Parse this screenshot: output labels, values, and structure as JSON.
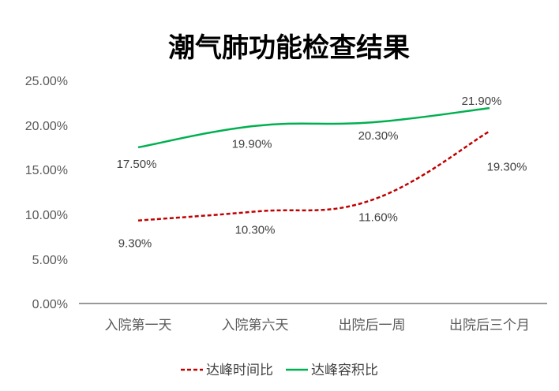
{
  "chart_data": {
    "type": "line",
    "title": "潮气肺功能检查结果",
    "categories": [
      "入院第一天",
      "入院第六天",
      "出院后一周",
      "出院后三个月"
    ],
    "y_ticks": [
      "0.00%",
      "5.00%",
      "10.00%",
      "15.00%",
      "20.00%",
      "25.00%"
    ],
    "ylim": [
      0,
      25
    ],
    "grid": false,
    "legend_position": "bottom",
    "series": [
      {
        "name": "达峰时间比",
        "values": [
          9.3,
          10.3,
          11.6,
          19.3
        ],
        "labels": [
          "9.30%",
          "10.30%",
          "11.60%",
          "19.30%"
        ],
        "color": "#C00000",
        "style": "dashed"
      },
      {
        "name": "达峰容积比",
        "values": [
          17.5,
          19.9,
          20.3,
          21.9
        ],
        "labels": [
          "17.50%",
          "19.90%",
          "20.30%",
          "21.90%"
        ],
        "color": "#00B050",
        "style": "solid"
      }
    ]
  }
}
